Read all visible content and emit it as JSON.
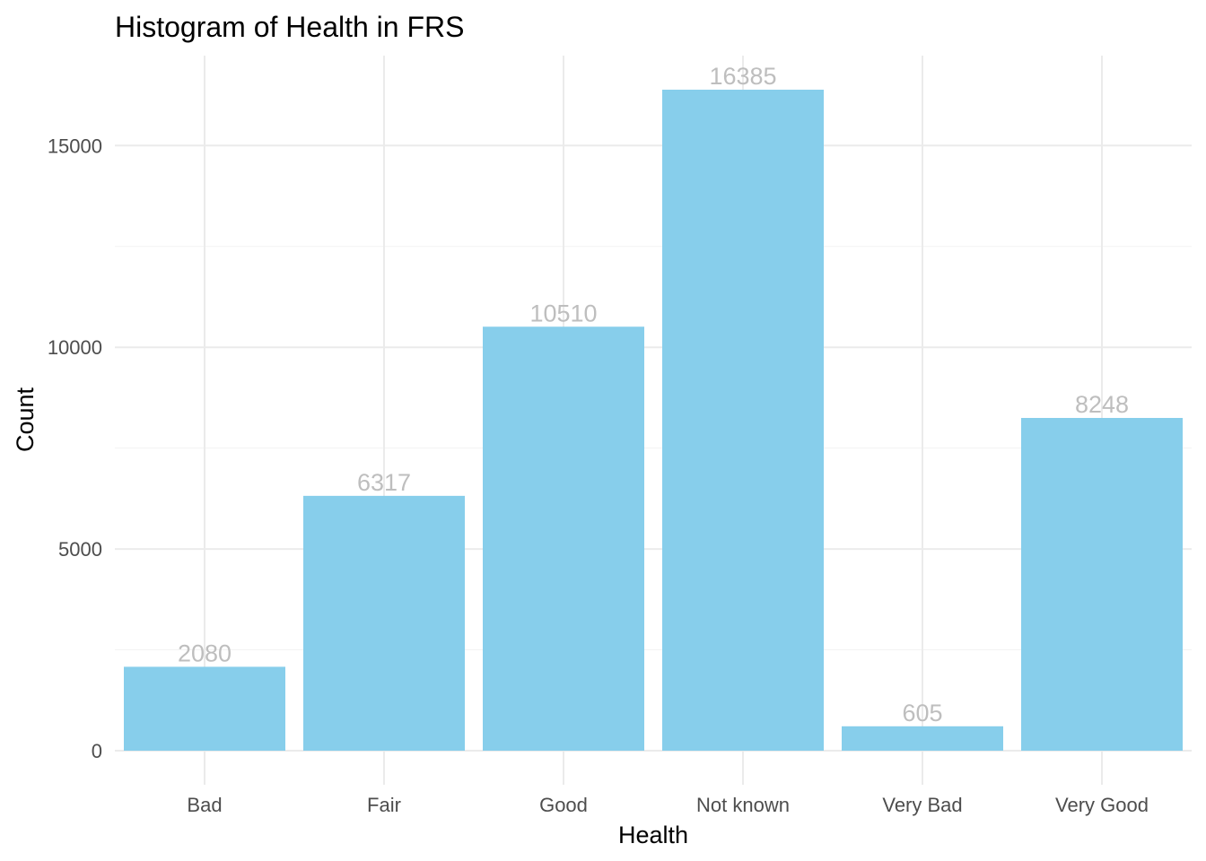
{
  "chart_data": {
    "type": "bar",
    "title": "Histogram of Health in FRS",
    "xlabel": "Health",
    "ylabel": "Count",
    "categories": [
      "Bad",
      "Fair",
      "Good",
      "Not known",
      "Very Bad",
      "Very Good"
    ],
    "values": [
      2080,
      6317,
      10510,
      16385,
      605,
      8248
    ],
    "data_labels": [
      "2080",
      "6317",
      "10510",
      "16385",
      "605",
      "8248"
    ],
    "ylim": [
      0,
      16385
    ],
    "yticks": [
      0,
      5000,
      10000,
      15000
    ],
    "ytick_labels": [
      "0",
      "5000",
      "10000",
      "15000"
    ],
    "grid": true,
    "legend": "none",
    "colors": {
      "bar": "#87ceeb",
      "data_label": "#bebebe",
      "grid": "#ebebeb"
    }
  }
}
